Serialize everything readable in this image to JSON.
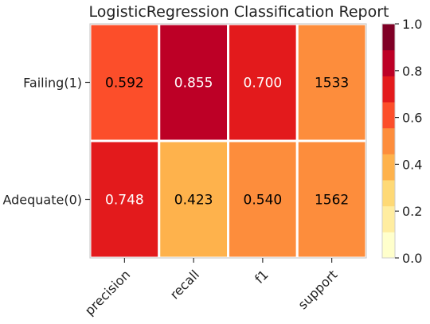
{
  "chart_data": {
    "type": "heatmap",
    "title": "LogisticRegression Classification Report",
    "xlabel": "",
    "ylabel": "",
    "columns": [
      "precision",
      "recall",
      "f1",
      "support"
    ],
    "rows": [
      "Failing(1)",
      "Adequate(0)"
    ],
    "cells": [
      [
        {
          "label": "0.592",
          "value": 0.592,
          "color": "#fc4e2a"
        },
        {
          "label": "0.855",
          "value": 0.855,
          "color": "#bd0026"
        },
        {
          "label": "0.700",
          "value": 0.7,
          "color": "#e31a1c"
        },
        {
          "label": "1533",
          "value": 1533,
          "color": "#fd8d3c"
        }
      ],
      [
        {
          "label": "0.748",
          "value": 0.748,
          "color": "#e31a1c"
        },
        {
          "label": "0.423",
          "value": 0.423,
          "color": "#feb24c"
        },
        {
          "label": "0.540",
          "value": 0.54,
          "color": "#fd8d3c"
        },
        {
          "label": "1562",
          "value": 1562,
          "color": "#fd8d3c"
        }
      ]
    ],
    "colorbar": {
      "range": [
        0.0,
        1.0
      ],
      "ticks": [
        "0.0",
        "0.2",
        "0.4",
        "0.6",
        "0.8",
        "1.0"
      ],
      "colors": [
        "#ffffcc",
        "#ffeda0",
        "#fed976",
        "#feb24c",
        "#fd8d3c",
        "#fc4e2a",
        "#e31a1c",
        "#bd0026",
        "#800026"
      ]
    },
    "grid": false
  }
}
